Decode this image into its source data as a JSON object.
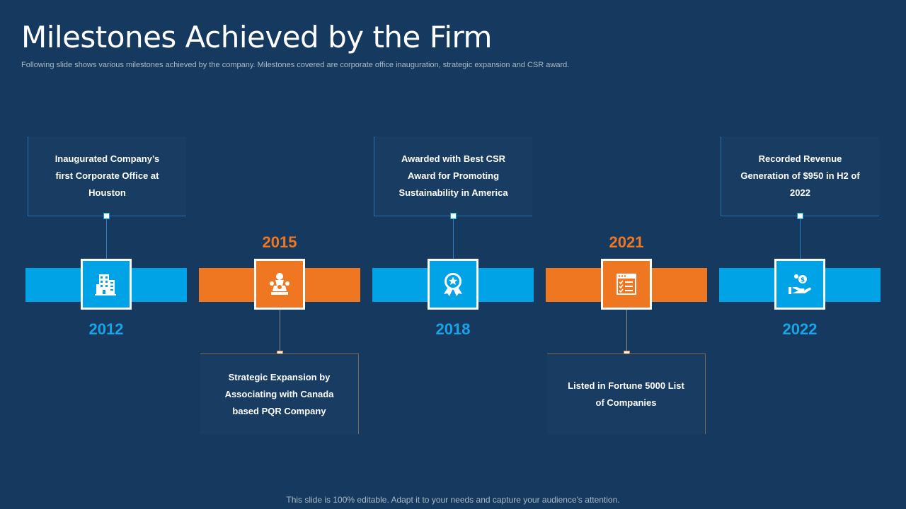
{
  "slide": {
    "title": "Milestones Achieved by the Firm",
    "subtitle": "Following slide shows various milestones achieved by the company. Milestones covered are corporate office inauguration, strategic expansion and CSR award.",
    "footer": "This slide is 100% editable. Adapt it to your needs and capture your audience's attention."
  },
  "colors": {
    "background": "#163a5f",
    "blue": "#00a3e6",
    "orange": "#ef7722"
  },
  "milestones": [
    {
      "year": "2012",
      "text": "Inaugurated Company’s first Corporate Office at Houston",
      "icon": "office-building-icon",
      "color": "blue",
      "card_position": "top"
    },
    {
      "year": "2015",
      "text": "Strategic Expansion by Associating with Canada based PQR Company",
      "icon": "chess-pieces-icon",
      "color": "orange",
      "card_position": "bottom"
    },
    {
      "year": "2018",
      "text": "Awarded with Best CSR Award for Promoting Sustainability in America",
      "icon": "award-ribbon-icon",
      "color": "blue",
      "card_position": "top"
    },
    {
      "year": "2021",
      "text": "Listed in Fortune 5000 List of Companies",
      "icon": "checklist-icon",
      "color": "orange",
      "card_position": "bottom"
    },
    {
      "year": "2022",
      "text": "Recorded Revenue Generation of $950 in H2 of 2022",
      "icon": "money-hand-icon",
      "color": "blue",
      "card_position": "top"
    }
  ]
}
